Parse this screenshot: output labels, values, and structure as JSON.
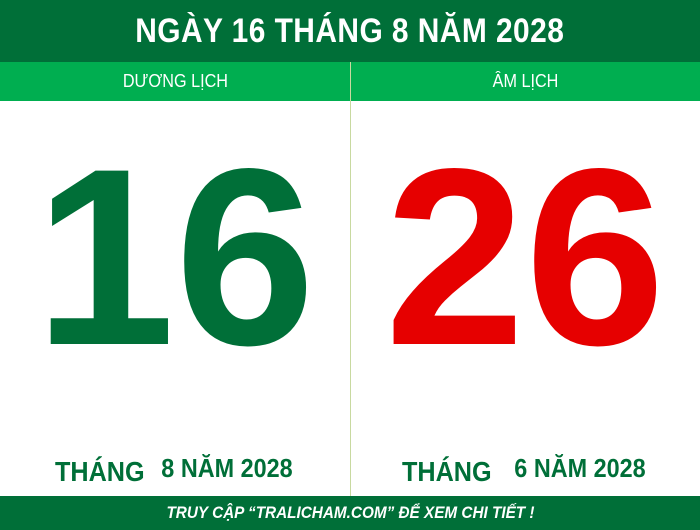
{
  "header": {
    "title": "NGÀY 16 THÁNG 8 NĂM 2028"
  },
  "solar": {
    "label": "DƯƠNG LỊCH",
    "day": "16",
    "month_word": "THÁNG",
    "rest": "8 NĂM 2028",
    "color": "#006f38"
  },
  "lunar": {
    "label": "ÂM LỊCH",
    "day": "26",
    "month_word": "THÁNG",
    "rest": "6 NĂM 2028",
    "color": "#e60000"
  },
  "footer": {
    "text": "TRUY CẬP “TRALICHAM.COM” ĐỂ XEM CHI TIẾT !"
  },
  "colors": {
    "dark_green": "#006f38",
    "light_green": "#00ae50",
    "red": "#e60000"
  }
}
